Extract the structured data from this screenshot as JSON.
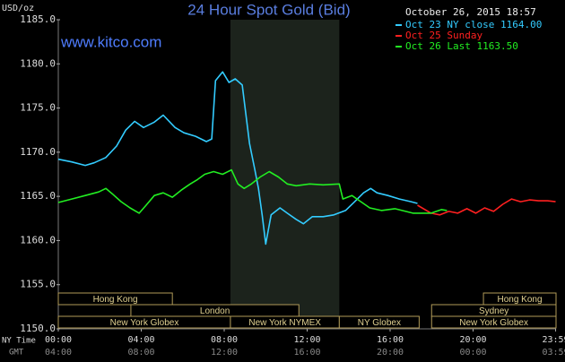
{
  "chart_data": {
    "type": "line",
    "title": "24 Hour Spot Gold (Bid)",
    "watermark": "www.kitco.com",
    "timestamp": "October 26, 2015 18:57",
    "y_label": "USD/oz",
    "x_label": "NY Time",
    "x2_label": "GMT",
    "xlim": [
      0,
      24
    ],
    "xticks": [
      {
        "value": 0,
        "label": "00:00"
      },
      {
        "value": 4,
        "label": "04:00"
      },
      {
        "value": 8,
        "label": "08:00"
      },
      {
        "value": 12,
        "label": "12:00"
      },
      {
        "value": 16,
        "label": "16:00"
      },
      {
        "value": 20,
        "label": "20:00"
      },
      {
        "value": 23.98,
        "label": "23:59"
      }
    ],
    "x2ticks": [
      {
        "value": 0,
        "label": "04:00"
      },
      {
        "value": 4,
        "label": "08:00"
      },
      {
        "value": 8,
        "label": "12:00"
      },
      {
        "value": 12,
        "label": "16:00"
      },
      {
        "value": 16,
        "label": "20:00"
      },
      {
        "value": 20,
        "label": "00:00"
      },
      {
        "value": 23.98,
        "label": "03:59"
      }
    ],
    "ylim": [
      1150,
      1185
    ],
    "yticks": [
      {
        "value": 1150,
        "label": "1150.0"
      },
      {
        "value": 1155,
        "label": "1155.0"
      },
      {
        "value": 1160,
        "label": "1160.0"
      },
      {
        "value": 1165,
        "label": "1165.0"
      },
      {
        "value": 1170,
        "label": "1170.0"
      },
      {
        "value": 1175,
        "label": "1175.0"
      },
      {
        "value": 1180,
        "label": "1180.0"
      },
      {
        "value": 1185,
        "label": "1185.0"
      }
    ],
    "series": [
      {
        "name": "Oct 23 NY close 1164.00",
        "color": "#33ccff",
        "x": [
          0,
          0.65,
          1.3,
          1.73,
          2.29,
          2.81,
          3.25,
          3.68,
          4.11,
          4.63,
          5.06,
          5.63,
          6.06,
          6.62,
          7.14,
          7.4,
          7.58,
          7.92,
          8.23,
          8.53,
          8.87,
          9.22,
          9.48,
          9.65,
          9.83,
          10.0,
          10.26,
          10.69,
          11.04,
          11.47,
          11.82,
          12.25,
          12.77,
          13.29,
          13.85,
          14.29,
          14.72,
          15.06,
          15.37,
          15.89,
          16.45,
          17.01,
          17.32
        ],
        "values": [
          1169.2,
          1168.9,
          1168.5,
          1168.8,
          1169.4,
          1170.7,
          1172.5,
          1173.5,
          1172.8,
          1173.4,
          1174.2,
          1172.8,
          1172.2,
          1171.8,
          1171.2,
          1171.5,
          1178.1,
          1179.1,
          1177.9,
          1178.3,
          1177.6,
          1171.0,
          1168.0,
          1165.9,
          1162.9,
          1159.6,
          1162.9,
          1163.7,
          1163.1,
          1162.4,
          1161.9,
          1162.7,
          1162.7,
          1162.9,
          1163.4,
          1164.4,
          1165.4,
          1165.9,
          1165.4,
          1165.1,
          1164.7,
          1164.4,
          1164.2
        ]
      },
      {
        "name": "Oct 25 Sunday",
        "color": "#ff2020",
        "x": [
          17.32,
          17.97,
          18.4,
          18.83,
          19.26,
          19.7,
          20.13,
          20.56,
          20.99,
          21.43,
          21.86,
          22.29,
          22.73,
          23.16,
          23.59,
          23.98
        ],
        "values": [
          1164.0,
          1163.1,
          1162.9,
          1163.3,
          1163.1,
          1163.6,
          1163.1,
          1163.7,
          1163.3,
          1164.1,
          1164.7,
          1164.4,
          1164.6,
          1164.5,
          1164.5,
          1164.4
        ]
      },
      {
        "name": "Oct 26 Last 1163.50",
        "color": "#22ee22",
        "x": [
          0,
          0.65,
          1.3,
          1.95,
          2.29,
          2.6,
          3.03,
          3.46,
          3.9,
          4.2,
          4.63,
          5.06,
          5.5,
          5.93,
          6.36,
          6.71,
          7.06,
          7.49,
          7.92,
          8.35,
          8.66,
          8.96,
          9.31,
          9.74,
          10.17,
          10.61,
          11.04,
          11.47,
          12.12,
          12.77,
          13.55,
          13.72,
          14.16,
          14.59,
          15.02,
          15.58,
          16.23,
          17.1,
          17.97,
          18.48,
          18.74
        ],
        "values": [
          1164.3,
          1164.7,
          1165.1,
          1165.5,
          1165.9,
          1165.3,
          1164.4,
          1163.7,
          1163.1,
          1163.9,
          1165.1,
          1165.4,
          1164.9,
          1165.7,
          1166.4,
          1166.9,
          1167.5,
          1167.8,
          1167.5,
          1168.0,
          1166.4,
          1165.9,
          1166.4,
          1167.2,
          1167.8,
          1167.2,
          1166.4,
          1166.2,
          1166.4,
          1166.3,
          1166.4,
          1164.7,
          1165.1,
          1164.4,
          1163.7,
          1163.4,
          1163.6,
          1163.1,
          1163.1,
          1163.5,
          1163.4
        ]
      }
    ],
    "sessions": [
      [
        {
          "label": "Hong Kong",
          "start": 0,
          "end": 5.5
        },
        {
          "label": "Hong Kong",
          "start": 20.5,
          "end": 24
        }
      ],
      [
        {
          "label": "London",
          "start": 3.5,
          "end": 11.6
        },
        {
          "label": "Sydney",
          "start": 18,
          "end": 24
        }
      ],
      [
        {
          "label": "New York Globex",
          "start": 0,
          "end": 8.3
        },
        {
          "label": "New York NYMEX",
          "start": 8.3,
          "end": 13.55,
          "shaded": true
        },
        {
          "label": "NY Globex",
          "start": 13.55,
          "end": 17.4
        },
        {
          "label": "New York Globex",
          "start": 18,
          "end": 24
        }
      ]
    ]
  }
}
